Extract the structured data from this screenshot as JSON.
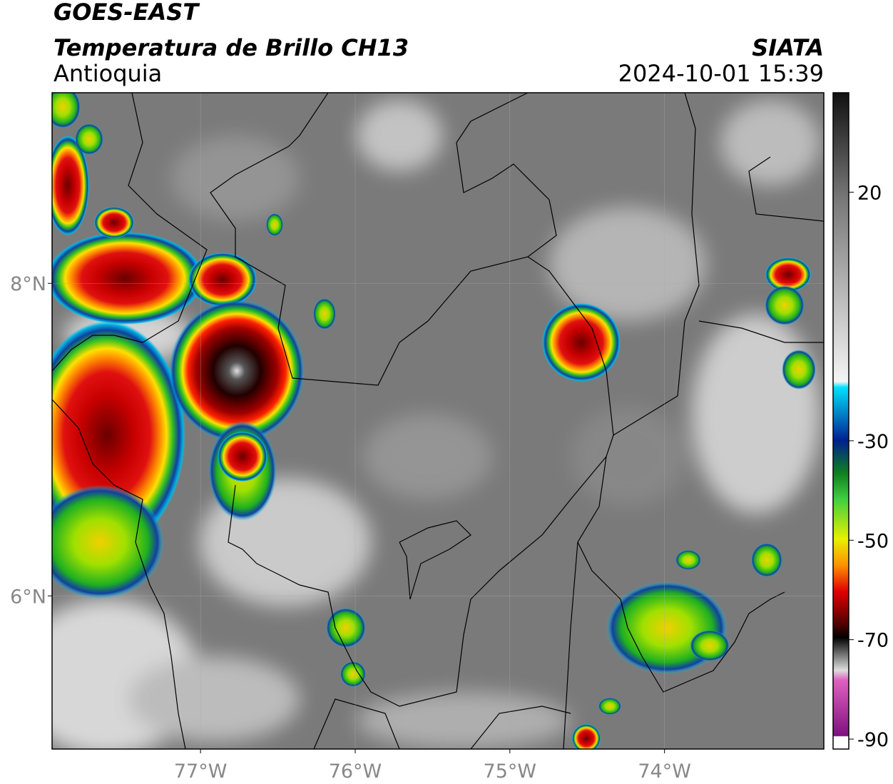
{
  "header": {
    "title": "GOES-EAST",
    "subtitle": "Temperatura de Brillo CH13",
    "region": "Antioquia",
    "source": "SIATA",
    "datetime": "2024-10-01 15:39"
  },
  "map": {
    "xlim": [
      -77.96,
      -72.97
    ],
    "ylim": [
      5.02,
      9.22
    ],
    "xticks": [
      {
        "value": -77,
        "label": "77°W"
      },
      {
        "value": -76,
        "label": "76°W"
      },
      {
        "value": -75,
        "label": "75°W"
      },
      {
        "value": -74,
        "label": "74°W"
      }
    ],
    "yticks": [
      {
        "value": 6,
        "label": "6°N"
      },
      {
        "value": 8,
        "label": "8°N"
      }
    ],
    "grid": true
  },
  "colorbar": {
    "lim": [
      -92,
      40
    ],
    "ticks": [
      20,
      -30,
      -50,
      -70,
      -90
    ]
  }
}
